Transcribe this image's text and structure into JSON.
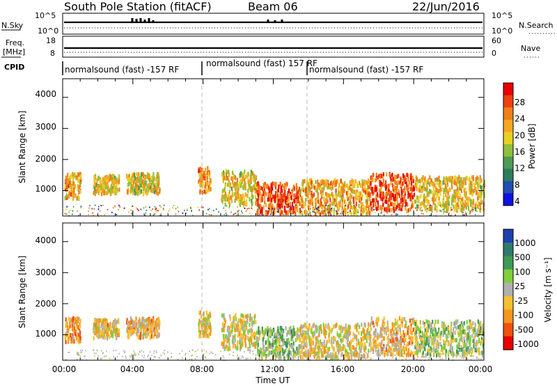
{
  "header": {
    "station": "South Pole Station (fitACF)",
    "beam": "Beam 06",
    "date": "22/Jun/2016"
  },
  "params": {
    "nsky_label": "N.Sky",
    "nsky_ticks": [
      "10^5",
      "10^0"
    ],
    "nsearch_label": "N.Search",
    "nsearch_ticks": [
      "10^5",
      "10^0"
    ],
    "freq_label_1": "Freq.",
    "freq_label_2": "[MHz]",
    "freq_ticks": [
      "18",
      "8"
    ],
    "nave_label": "Nave",
    "nave_ticks": [
      "60",
      "0"
    ],
    "cpid_label": "CPID",
    "cpid_segments": [
      {
        "label": "normalsound (fast) -157 RF",
        "start": 0,
        "end": 8
      },
      {
        "label": "normalsound (fast) 157 RF",
        "start": 8,
        "end": 14
      },
      {
        "label": "normalsound (fast) -157 RF",
        "start": 14,
        "end": 24
      }
    ]
  },
  "x_axis": {
    "label": "Time UT",
    "ticks": [
      "00:00",
      "04:00",
      "08:00",
      "12:00",
      "16:00",
      "20:00",
      "00:00"
    ]
  },
  "power_panel": {
    "ylabel": "Slant Range [km]",
    "y_ticks": [
      "4000",
      "3000",
      "2000",
      "1000"
    ],
    "colorbar_label": "Power [dB]",
    "colorbar_ticks": [
      "28",
      "24",
      "20",
      "16",
      "12",
      "8",
      "4"
    ]
  },
  "velocity_panel": {
    "ylabel": "Slant Range [km]",
    "y_ticks": [
      "4000",
      "3000",
      "2000",
      "1000"
    ],
    "colorbar_label": "Velocity [m s⁻¹]",
    "colorbar_ticks": [
      "1000",
      "500",
      "100",
      "25",
      "-25",
      "-100",
      "-500",
      "-1000"
    ]
  },
  "colors": {
    "power_scale": [
      "#1010e0",
      "#1f4fb0",
      "#2e7d5a",
      "#4f9a55",
      "#8fbf3a",
      "#e8d020",
      "#f5a623",
      "#f07f1a",
      "#ee4010",
      "#e80000"
    ],
    "velocity_scale": [
      "#e80000",
      "#f05010",
      "#f5961e",
      "#f7c030",
      "#b0b0b0",
      "#7fcf3a",
      "#3f9a55",
      "#2f7a6a",
      "#2040b0"
    ]
  },
  "chart_data": [
    {
      "type": "heatmap",
      "title": "South Pole Station (fitACF) Beam 06",
      "xlabel": "Time UT",
      "ylabel": "Slant Range [km]",
      "colorbar": "Power [dB]",
      "xlim": [
        0,
        24
      ],
      "ylim": [
        180,
        4600
      ],
      "zlim": [
        0,
        30
      ],
      "blobs": [
        {
          "t": [
            0.1,
            1.0
          ],
          "r": [
            800,
            1600
          ],
          "z": 20
        },
        {
          "t": [
            1.7,
            3.2
          ],
          "r": [
            950,
            1550
          ],
          "z": 18
        },
        {
          "t": [
            3.6,
            5.5
          ],
          "r": [
            950,
            1600
          ],
          "z": 17
        },
        {
          "t": [
            7.7,
            8.4
          ],
          "r": [
            1000,
            1800
          ],
          "z": 22
        },
        {
          "t": [
            9.0,
            11.0
          ],
          "r": [
            600,
            1700
          ],
          "z": 18
        },
        {
          "t": [
            11.0,
            13.5
          ],
          "r": [
            300,
            1300
          ],
          "z": 26
        },
        {
          "t": [
            13.5,
            17.5
          ],
          "r": [
            300,
            1400
          ],
          "z": 20
        },
        {
          "t": [
            17.5,
            20.0
          ],
          "r": [
            400,
            1600
          ],
          "z": 27
        },
        {
          "t": [
            20.0,
            24.0
          ],
          "r": [
            400,
            1500
          ],
          "z": 18
        }
      ]
    },
    {
      "type": "heatmap",
      "title": "South Pole Station (fitACF) Beam 06",
      "xlabel": "Time UT",
      "ylabel": "Slant Range [km]",
      "colorbar": "Velocity [m s⁻¹]",
      "xlim": [
        0,
        24
      ],
      "ylim": [
        180,
        4600
      ],
      "zlim": [
        -1000,
        1000
      ],
      "blobs": [
        {
          "t": [
            0.1,
            1.0
          ],
          "r": [
            800,
            1600
          ],
          "v": -400
        },
        {
          "t": [
            1.7,
            3.2
          ],
          "r": [
            950,
            1550
          ],
          "v": -200
        },
        {
          "t": [
            3.6,
            5.5
          ],
          "r": [
            950,
            1600
          ],
          "v": -300
        },
        {
          "t": [
            7.7,
            8.4
          ],
          "r": [
            1000,
            1800
          ],
          "v": -150
        },
        {
          "t": [
            9.0,
            11.0
          ],
          "r": [
            600,
            1700
          ],
          "v": -100
        },
        {
          "t": [
            11.0,
            13.5
          ],
          "r": [
            300,
            1300
          ],
          "v": 200
        },
        {
          "t": [
            13.5,
            17.5
          ],
          "r": [
            300,
            1400
          ],
          "v": -150
        },
        {
          "t": [
            17.5,
            20.0
          ],
          "r": [
            400,
            1600
          ],
          "v": -300
        },
        {
          "t": [
            20.0,
            24.0
          ],
          "r": [
            400,
            1500
          ],
          "v": 100
        }
      ]
    }
  ]
}
